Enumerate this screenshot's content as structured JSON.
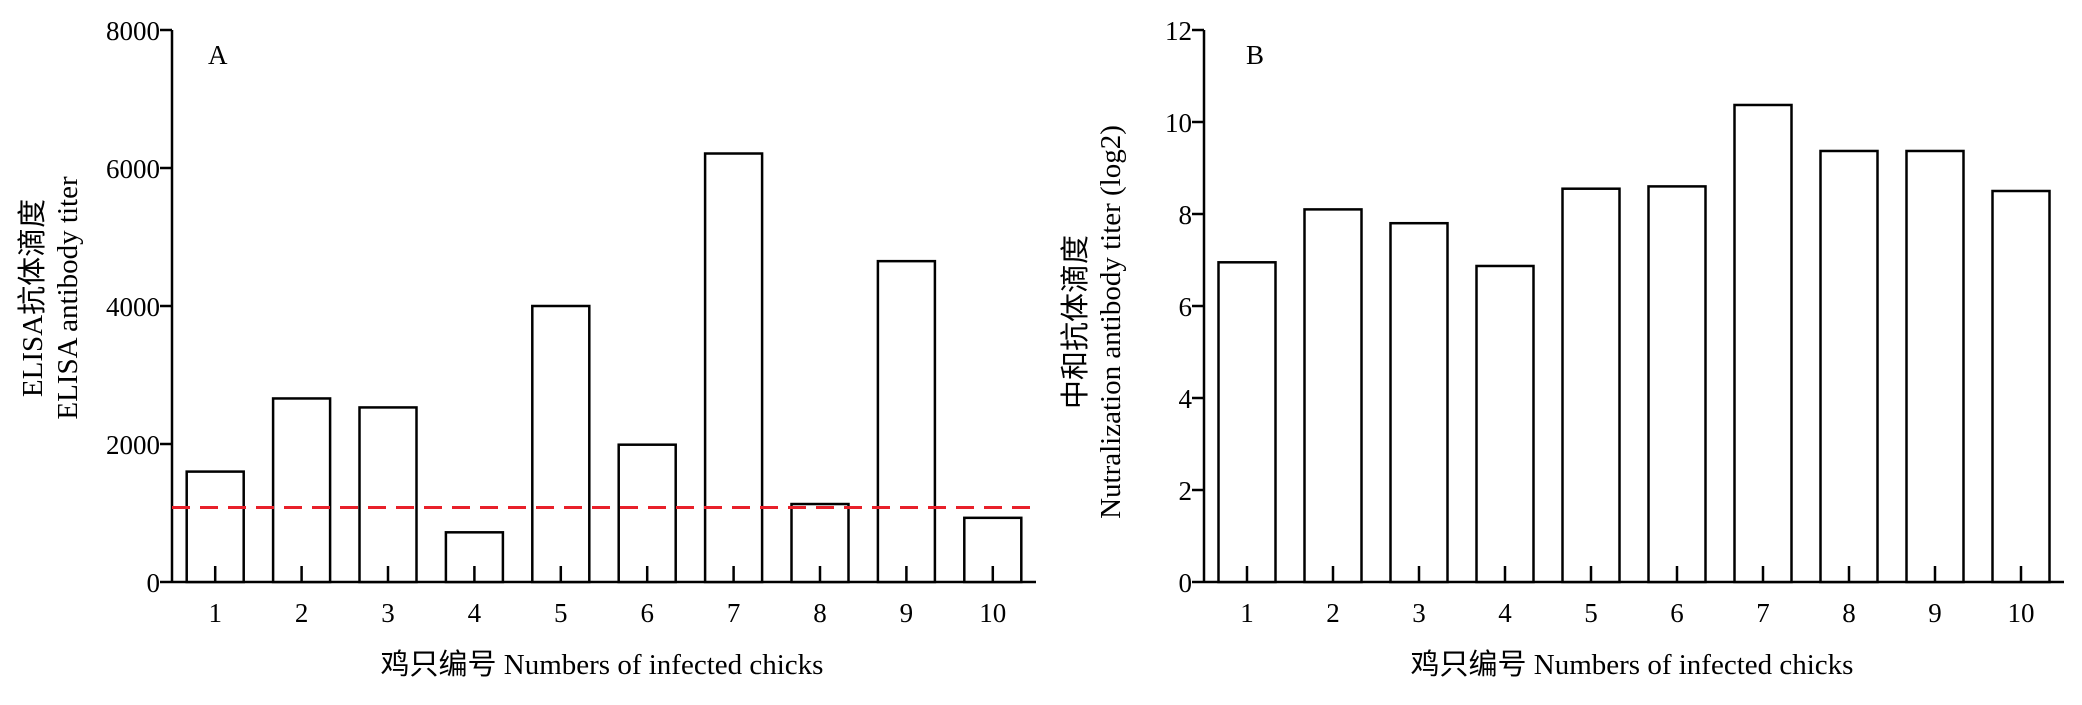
{
  "chart_data": [
    {
      "type": "bar",
      "panel_label": "A",
      "categories": [
        "1",
        "2",
        "3",
        "4",
        "5",
        "6",
        "7",
        "8",
        "9",
        "10"
      ],
      "values": [
        1600,
        2660,
        2530,
        720,
        4000,
        1990,
        6210,
        1130,
        4650,
        930
      ],
      "xlabel": "鸡只编号 Numbers of infected chicks",
      "ylabel_lines": [
        "ELISA抗体滴度",
        "ELISA antibody titer"
      ],
      "ylim": [
        0,
        8000
      ],
      "yticks": [
        "0",
        "2000",
        "4000",
        "6000",
        "8000"
      ],
      "threshold": {
        "value": 1080,
        "color": "#e8202a",
        "style": "dashed"
      },
      "bar_fill": "#ffffff",
      "bar_stroke": "#000000",
      "grid": false
    },
    {
      "type": "bar",
      "panel_label": "B",
      "categories": [
        "1",
        "2",
        "3",
        "4",
        "5",
        "6",
        "7",
        "8",
        "9",
        "10"
      ],
      "values": [
        6.95,
        8.1,
        7.8,
        6.87,
        8.55,
        8.6,
        10.37,
        9.37,
        9.37,
        8.5
      ],
      "xlabel": "鸡只编号 Numbers of infected chicks",
      "ylabel_lines": [
        "中和抗体滴度",
        "Nutralization antibody titer (log2)"
      ],
      "ylim": [
        0,
        12
      ],
      "yticks": [
        "0",
        "2",
        "4",
        "6",
        "8",
        "10",
        "12"
      ],
      "bar_fill": "#ffffff",
      "bar_stroke": "#000000",
      "grid": false
    }
  ]
}
